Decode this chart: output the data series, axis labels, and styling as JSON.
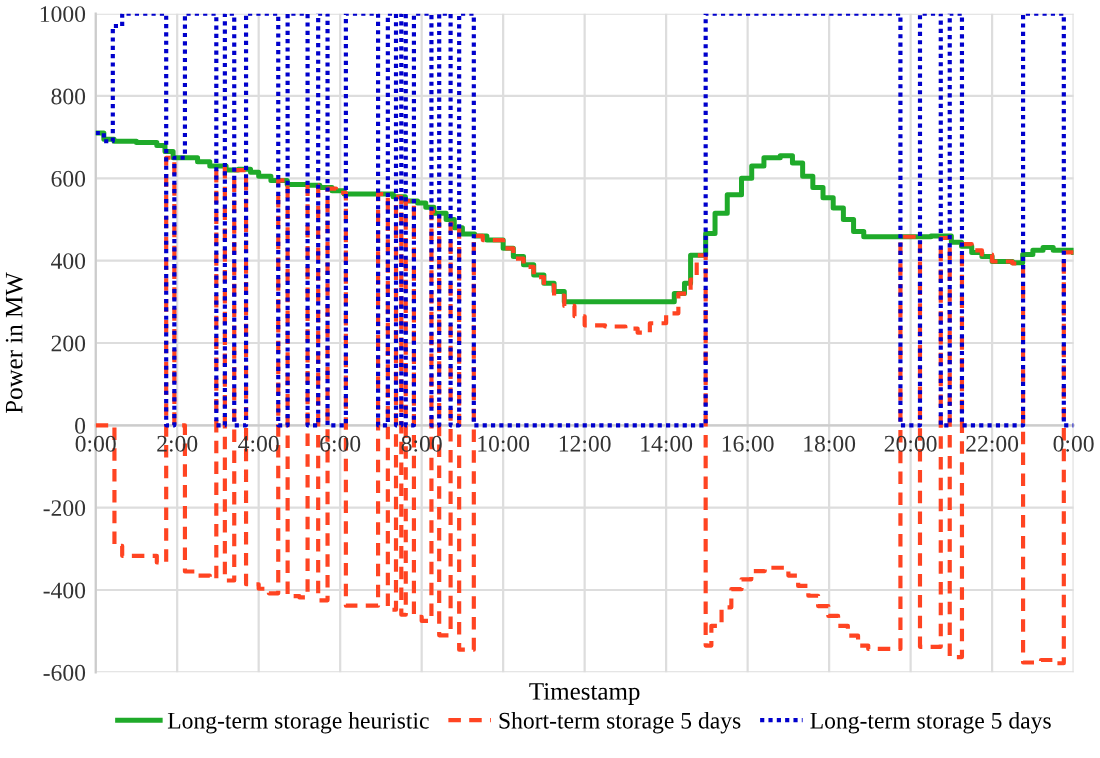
{
  "chart_data": {
    "type": "step",
    "xlabel": "Timestamp",
    "ylabel": "Power in MW",
    "xlim": [
      0,
      24
    ],
    "ylim": [
      -600,
      1000
    ],
    "yticks": [
      -600,
      -400,
      -200,
      0,
      200,
      400,
      600,
      800,
      1000
    ],
    "xticks": [
      {
        "value": 0,
        "label": "0:00"
      },
      {
        "value": 2,
        "label": "2:00"
      },
      {
        "value": 4,
        "label": "4:00"
      },
      {
        "value": 6,
        "label": "6:00"
      },
      {
        "value": 8,
        "label": "8:00"
      },
      {
        "value": 10,
        "label": "10:00"
      },
      {
        "value": 12,
        "label": "12:00"
      },
      {
        "value": 14,
        "label": "14:00"
      },
      {
        "value": 16,
        "label": "16:00"
      },
      {
        "value": 18,
        "label": "18:00"
      },
      {
        "value": 20,
        "label": "20:00"
      },
      {
        "value": 22,
        "label": "22:00"
      },
      {
        "value": 24,
        "label": "0:00"
      }
    ],
    "grid": true,
    "legend": "bottom",
    "marker": "none",
    "series": [
      {
        "name": "Long-term storage heuristic",
        "color": "#1faa2a",
        "line_style": "solid",
        "x": [
          0,
          0.2,
          0.45,
          1.0,
          1.5,
          1.7,
          1.9,
          2.5,
          2.8,
          3.2,
          3.5,
          3.8,
          4.0,
          4.3,
          4.7,
          5.2,
          5.5,
          5.8,
          6.1,
          7.3,
          7.6,
          7.9,
          8.1,
          8.3,
          8.6,
          8.8,
          9.0,
          9.3,
          9.6,
          10.0,
          10.25,
          10.5,
          10.75,
          11.0,
          11.25,
          11.5,
          14.2,
          14.45,
          14.6,
          14.97,
          15.2,
          15.5,
          15.85,
          16.1,
          16.4,
          16.8,
          17.1,
          17.35,
          17.6,
          17.85,
          18.1,
          18.35,
          18.6,
          18.85,
          20.5,
          21.0,
          21.25,
          21.5,
          21.75,
          22.0,
          22.5,
          22.75,
          23.0,
          23.25,
          23.5,
          24
        ],
        "values": [
          710,
          695,
          690,
          687,
          680,
          665,
          650,
          640,
          630,
          620,
          622,
          615,
          605,
          595,
          585,
          583,
          578,
          570,
          562,
          555,
          545,
          540,
          530,
          515,
          500,
          480,
          465,
          460,
          450,
          430,
          410,
          390,
          365,
          345,
          325,
          300,
          320,
          345,
          413,
          466,
          515,
          560,
          600,
          630,
          650,
          655,
          637,
          605,
          578,
          553,
          528,
          500,
          471,
          458,
          460,
          445,
          435,
          420,
          410,
          398,
          395,
          415,
          425,
          432,
          425,
          420
        ]
      },
      {
        "name": "Short-term storage 5 days",
        "color": "#ff4422",
        "line_style": "dashed",
        "x": [
          0,
          0.46,
          0.65,
          1.5,
          1.73,
          1.93,
          2.19,
          2.5,
          2.8,
          2.96,
          3.17,
          3.4,
          3.69,
          4.0,
          4.25,
          4.48,
          4.71,
          5.0,
          5.2,
          5.46,
          5.69,
          5.9,
          6.14,
          6.93,
          7.17,
          7.37,
          7.5,
          7.61,
          7.81,
          8.0,
          8.24,
          8.43,
          8.71,
          8.92,
          9.28,
          9.5,
          10.0,
          10.25,
          10.5,
          10.75,
          11.0,
          11.25,
          11.5,
          11.75,
          12.0,
          12.5,
          13.0,
          13.3,
          13.6,
          14.0,
          14.3,
          14.6,
          14.75,
          14.97,
          15.11,
          15.36,
          15.6,
          15.85,
          16.09,
          16.42,
          17.0,
          17.24,
          17.49,
          17.73,
          17.98,
          18.22,
          18.46,
          18.71,
          18.96,
          19.75,
          20.23,
          20.74,
          20.96,
          21.26,
          21.5,
          21.75,
          22.0,
          22.5,
          22.76,
          23.2,
          23.5,
          23.76,
          24
        ],
        "values": [
          0,
          -293,
          -317,
          -333,
          650,
          0,
          -355,
          -365,
          -372,
          625,
          -377,
          620,
          -386,
          -397,
          -408,
          595,
          -415,
          -418,
          583,
          -425,
          575,
          565,
          -438,
          562,
          -448,
          555,
          -460,
          545,
          -465,
          -475,
          520,
          -510,
          490,
          -545,
          460,
          450,
          430,
          405,
          385,
          360,
          340,
          315,
          290,
          265,
          243,
          240,
          235,
          225,
          248,
          272,
          320,
          354,
          413,
          -535,
          -487,
          -442,
          -398,
          -374,
          -354,
          -346,
          -365,
          -390,
          -414,
          -439,
          -463,
          -487,
          -511,
          -535,
          -543,
          458,
          -538,
          455,
          -563,
          440,
          425,
          415,
          398,
          393,
          -576,
          -570,
          -578,
          420,
          420
        ]
      },
      {
        "name": "Long-term storage 5 days",
        "color": "#0000cc",
        "line_style": "dotted",
        "x": [
          0,
          0.2,
          0.42,
          0.65,
          1.73,
          1.93,
          2.19,
          2.96,
          3.17,
          3.4,
          3.69,
          4.48,
          4.71,
          5.2,
          5.46,
          5.69,
          6.14,
          6.93,
          7.17,
          7.37,
          7.5,
          7.61,
          7.81,
          8.24,
          8.43,
          8.71,
          8.92,
          9.28,
          14.97,
          19.75,
          20.23,
          20.74,
          20.96,
          21.26,
          22.76,
          23.76,
          24
        ],
        "values": [
          710,
          690,
          970,
          1000,
          0,
          650,
          1000,
          0,
          1000,
          0,
          1000,
          0,
          1000,
          0,
          1000,
          0,
          1000,
          0,
          1000,
          0,
          1000,
          0,
          1000,
          0,
          1000,
          0,
          1000,
          0,
          1000,
          0,
          1000,
          0,
          1000,
          0,
          1000,
          0,
          0
        ]
      }
    ]
  }
}
